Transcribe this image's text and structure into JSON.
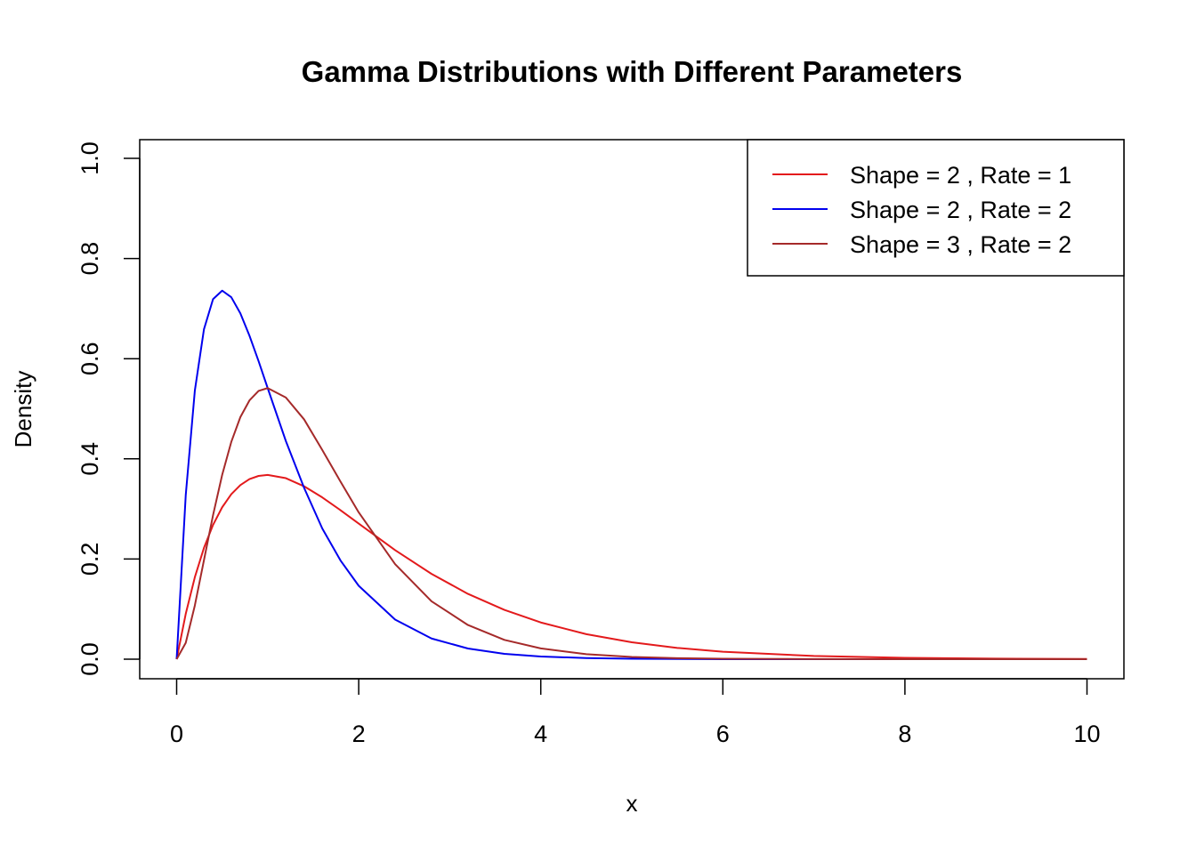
{
  "chart_data": {
    "type": "line",
    "title": "Gamma Distributions with Different Parameters",
    "xlabel": "x",
    "ylabel": "Density",
    "xlim": [
      0,
      10
    ],
    "ylim": [
      0,
      1
    ],
    "x_ticks": [
      0,
      2,
      4,
      6,
      8,
      10
    ],
    "y_ticks": [
      0.0,
      0.2,
      0.4,
      0.6,
      0.8,
      1.0
    ],
    "x_tick_labels": [
      "0",
      "2",
      "4",
      "6",
      "8",
      "10"
    ],
    "y_tick_labels": [
      "0.0",
      "0.2",
      "0.4",
      "0.6",
      "0.8",
      "1.0"
    ],
    "legend_position": "top-right",
    "grid": false,
    "x": [
      0,
      0.1,
      0.2,
      0.3,
      0.4,
      0.5,
      0.6,
      0.7,
      0.8,
      0.9,
      1.0,
      1.2,
      1.4,
      1.6,
      1.8,
      2.0,
      2.4,
      2.8,
      3.2,
      3.6,
      4.0,
      4.5,
      5.0,
      5.5,
      6.0,
      7.0,
      8.0,
      9.0,
      10.0
    ],
    "series": [
      {
        "name": "Shape = 2 , Rate = 1",
        "color": "#e31a1c",
        "values": [
          0,
          0.0905,
          0.1637,
          0.2222,
          0.2681,
          0.3033,
          0.3293,
          0.3476,
          0.3595,
          0.3659,
          0.3679,
          0.3614,
          0.3452,
          0.323,
          0.2975,
          0.2707,
          0.2177,
          0.1703,
          0.1304,
          0.0984,
          0.0733,
          0.05,
          0.0337,
          0.0225,
          0.0149,
          0.0064,
          0.0027,
          0.0011,
          0.0005
        ]
      },
      {
        "name": "Shape = 2 , Rate = 2",
        "color": "#0000ee",
        "values": [
          0,
          0.3275,
          0.5363,
          0.6586,
          0.7189,
          0.7358,
          0.7228,
          0.6904,
          0.6459,
          0.5951,
          0.5413,
          0.4354,
          0.3421,
          0.2609,
          0.1971,
          0.1465,
          0.079,
          0.0413,
          0.0213,
          0.0107,
          0.0054,
          0.0022,
          0.0009,
          0.0004,
          0.0001,
          0.0,
          0.0,
          0.0,
          0.0
        ]
      },
      {
        "name": "Shape = 3 , Rate = 2",
        "color": "#a52a2a",
        "values": [
          0,
          0.0327,
          0.1073,
          0.1976,
          0.2876,
          0.3679,
          0.4337,
          0.4833,
          0.5167,
          0.5356,
          0.5413,
          0.5225,
          0.4788,
          0.4176,
          0.3545,
          0.2931,
          0.1897,
          0.1156,
          0.0682,
          0.0385,
          0.0215,
          0.01,
          0.0045,
          0.002,
          0.0009,
          0.0002,
          0.0,
          0.0,
          0.0
        ]
      }
    ]
  }
}
